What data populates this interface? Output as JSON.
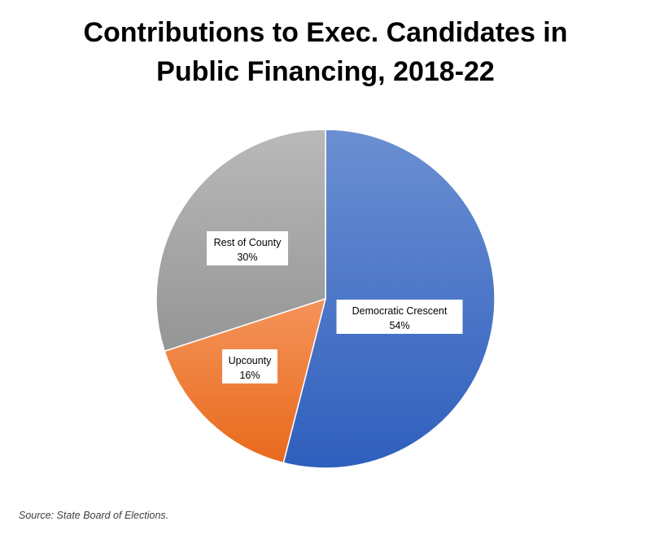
{
  "chart_data": {
    "type": "pie",
    "title_lines": [
      "Contributions to Exec. Candidates in",
      "Public Financing, 2018-22"
    ],
    "slices": [
      {
        "label": "Democratic Crescent",
        "value": 54,
        "value_label": "54%",
        "color": "#4472C4"
      },
      {
        "label": "Upcounty",
        "value": 16,
        "value_label": "16%",
        "color": "#ED7D31"
      },
      {
        "label": "Rest of County",
        "value": 30,
        "value_label": "30%",
        "color": "#A5A5A5"
      }
    ],
    "start": "12 o'clock",
    "direction": "clockwise",
    "legend": "none",
    "data_labels": "category name and percentage"
  },
  "source_note": "Source: State Board of Elections."
}
